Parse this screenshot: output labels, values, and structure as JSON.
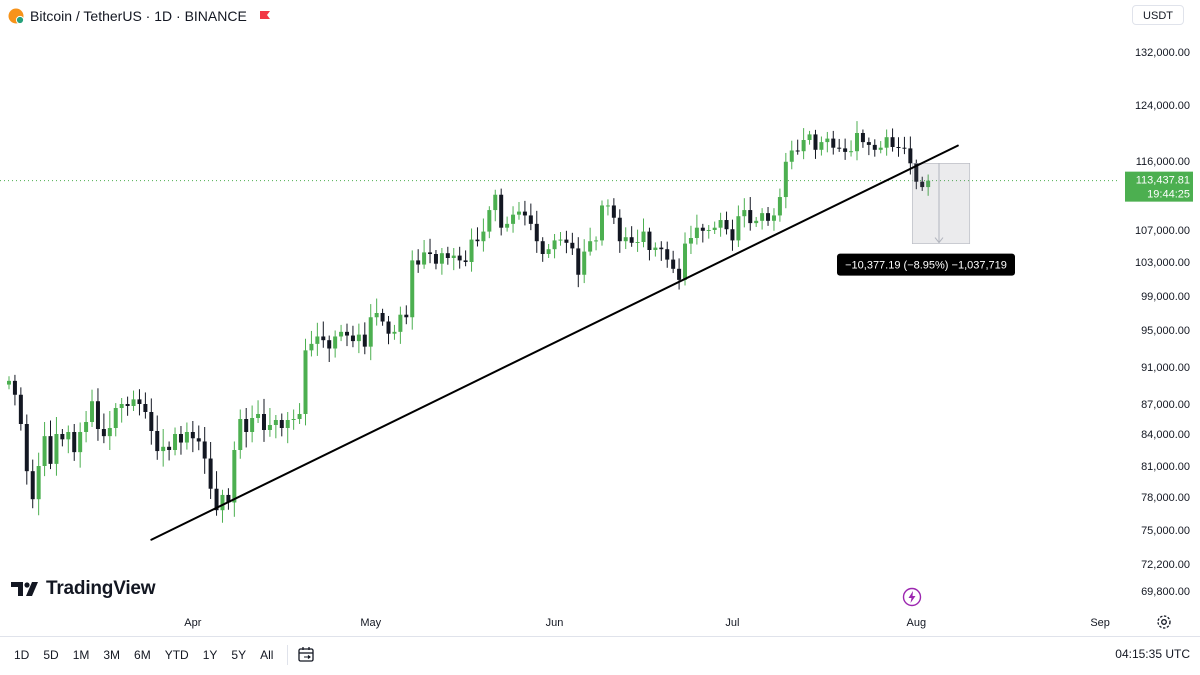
{
  "header": {
    "symbol": "Bitcoin / TetherUS · 1D · BINANCE",
    "currency": "USDT"
  },
  "brand": {
    "logo_text": "TradingView"
  },
  "price_tag": {
    "price": "113,437.81",
    "countdown": "19:44:25"
  },
  "measure_label": "−10,377.19 (−8.95%) −1,037,719",
  "bottom_bar": {
    "ranges": [
      "1D",
      "5D",
      "1M",
      "3M",
      "6M",
      "YTD",
      "1Y",
      "5Y",
      "All"
    ],
    "clock": "04:15:35 UTC"
  },
  "colors": {
    "up": "#4caf50",
    "down": "#131722",
    "price_tag": "#4caf50"
  },
  "chart_data": {
    "type": "candlestick",
    "interval": "1D",
    "y_ticks": [
      132000,
      124000,
      116000,
      107000,
      103000,
      99000,
      95000,
      91000,
      87000,
      84000,
      81000,
      78000,
      75000,
      72200,
      69800
    ],
    "y_tick_labels": [
      "132,000.00",
      "124,000.00",
      "116,000.00",
      "107,000.00",
      "103,000.00",
      "99,000.00",
      "95,000.00",
      "91,000.00",
      "87,000.00",
      "84,000.00",
      "81,000.00",
      "78,000.00",
      "75,000.00",
      "72,200.00",
      "69,800.00"
    ],
    "x_ticks": [
      "2025-04-01",
      "2025-05-01",
      "2025-06-01",
      "2025-07-01",
      "2025-08-01",
      "2025-09-01"
    ],
    "x_tick_labels": [
      "Apr",
      "May",
      "Jun",
      "Jul",
      "Aug",
      "Sep"
    ],
    "grid": false,
    "last_price": 113437.81,
    "closes": [
      [
        "2025-03-01",
        89500
      ],
      [
        "2025-03-02",
        88000
      ],
      [
        "2025-03-03",
        85000
      ],
      [
        "2025-03-04",
        80500
      ],
      [
        "2025-03-05",
        77800
      ],
      [
        "2025-03-06",
        81000
      ],
      [
        "2025-03-07",
        83800
      ],
      [
        "2025-03-08",
        81200
      ],
      [
        "2025-03-09",
        84000
      ],
      [
        "2025-03-10",
        83500
      ],
      [
        "2025-03-11",
        84200
      ],
      [
        "2025-03-12",
        82300
      ],
      [
        "2025-03-13",
        84200
      ],
      [
        "2025-03-14",
        85200
      ],
      [
        "2025-03-15",
        87300
      ],
      [
        "2025-03-16",
        84500
      ],
      [
        "2025-03-17",
        83800
      ],
      [
        "2025-03-18",
        84600
      ],
      [
        "2025-03-19",
        86600
      ],
      [
        "2025-03-20",
        87000
      ],
      [
        "2025-03-21",
        86800
      ],
      [
        "2025-03-22",
        87500
      ],
      [
        "2025-03-23",
        87000
      ],
      [
        "2025-03-24",
        86200
      ],
      [
        "2025-03-25",
        84300
      ],
      [
        "2025-03-26",
        82400
      ],
      [
        "2025-03-27",
        82800
      ],
      [
        "2025-03-28",
        82500
      ],
      [
        "2025-03-29",
        84000
      ],
      [
        "2025-03-30",
        83200
      ],
      [
        "2025-03-31",
        84200
      ],
      [
        "2025-04-01",
        83600
      ],
      [
        "2025-04-02",
        83300
      ],
      [
        "2025-04-03",
        81700
      ],
      [
        "2025-04-04",
        78800
      ],
      [
        "2025-04-05",
        76800
      ],
      [
        "2025-04-06",
        78200
      ],
      [
        "2025-04-07",
        77500
      ],
      [
        "2025-04-08",
        82500
      ],
      [
        "2025-04-09",
        85500
      ],
      [
        "2025-04-10",
        84200
      ],
      [
        "2025-04-11",
        85600
      ],
      [
        "2025-04-12",
        86000
      ],
      [
        "2025-04-13",
        84400
      ],
      [
        "2025-04-14",
        84900
      ],
      [
        "2025-04-15",
        85400
      ],
      [
        "2025-04-16",
        84600
      ],
      [
        "2025-04-17",
        85400
      ],
      [
        "2025-04-18",
        85500
      ],
      [
        "2025-04-19",
        86000
      ],
      [
        "2025-04-20",
        92800
      ],
      [
        "2025-04-21",
        93500
      ],
      [
        "2025-04-22",
        94300
      ],
      [
        "2025-04-23",
        93900
      ],
      [
        "2025-04-24",
        93000
      ],
      [
        "2025-04-25",
        94300
      ],
      [
        "2025-04-26",
        94800
      ],
      [
        "2025-04-27",
        94400
      ],
      [
        "2025-04-28",
        93800
      ],
      [
        "2025-04-29",
        94500
      ],
      [
        "2025-04-30",
        93200
      ],
      [
        "2025-05-01",
        96500
      ],
      [
        "2025-05-02",
        97000
      ],
      [
        "2025-05-03",
        96000
      ],
      [
        "2025-05-04",
        94600
      ],
      [
        "2025-05-05",
        94800
      ],
      [
        "2025-05-06",
        96800
      ],
      [
        "2025-05-07",
        96500
      ],
      [
        "2025-05-08",
        103200
      ],
      [
        "2025-05-09",
        102700
      ],
      [
        "2025-05-10",
        104200
      ],
      [
        "2025-05-11",
        104000
      ],
      [
        "2025-05-12",
        102800
      ],
      [
        "2025-05-13",
        104100
      ],
      [
        "2025-05-14",
        103500
      ],
      [
        "2025-05-15",
        103800
      ],
      [
        "2025-05-16",
        103200
      ],
      [
        "2025-05-17",
        103000
      ],
      [
        "2025-05-18",
        105800
      ],
      [
        "2025-05-19",
        105600
      ],
      [
        "2025-05-20",
        106800
      ],
      [
        "2025-05-21",
        109600
      ],
      [
        "2025-05-22",
        111600
      ],
      [
        "2025-05-23",
        107300
      ],
      [
        "2025-05-24",
        107800
      ],
      [
        "2025-05-25",
        109000
      ],
      [
        "2025-05-26",
        109400
      ],
      [
        "2025-05-27",
        108900
      ],
      [
        "2025-05-28",
        107800
      ],
      [
        "2025-05-29",
        105600
      ],
      [
        "2025-05-30",
        104000
      ],
      [
        "2025-05-31",
        104600
      ],
      [
        "2025-06-01",
        105700
      ],
      [
        "2025-06-02",
        105800
      ],
      [
        "2025-06-03",
        105400
      ],
      [
        "2025-06-04",
        104700
      ],
      [
        "2025-06-05",
        101500
      ],
      [
        "2025-06-06",
        104300
      ],
      [
        "2025-06-07",
        105600
      ],
      [
        "2025-06-08",
        105700
      ],
      [
        "2025-06-09",
        110200
      ],
      [
        "2025-06-10",
        110200
      ],
      [
        "2025-06-11",
        108600
      ],
      [
        "2025-06-12",
        105600
      ],
      [
        "2025-06-13",
        106100
      ],
      [
        "2025-06-14",
        105400
      ],
      [
        "2025-06-15",
        105500
      ],
      [
        "2025-06-16",
        106800
      ],
      [
        "2025-06-17",
        104500
      ],
      [
        "2025-06-18",
        104800
      ],
      [
        "2025-06-19",
        104600
      ],
      [
        "2025-06-20",
        103300
      ],
      [
        "2025-06-21",
        102200
      ],
      [
        "2025-06-22",
        100900
      ],
      [
        "2025-06-23",
        105300
      ],
      [
        "2025-06-24",
        106000
      ],
      [
        "2025-06-25",
        107300
      ],
      [
        "2025-06-26",
        106900
      ],
      [
        "2025-06-27",
        107000
      ],
      [
        "2025-06-28",
        107300
      ],
      [
        "2025-06-29",
        108300
      ],
      [
        "2025-06-30",
        107100
      ],
      [
        "2025-07-01",
        105700
      ],
      [
        "2025-07-02",
        108800
      ],
      [
        "2025-07-03",
        109600
      ],
      [
        "2025-07-04",
        107900
      ],
      [
        "2025-07-05",
        108200
      ],
      [
        "2025-07-06",
        109200
      ],
      [
        "2025-07-07",
        108200
      ],
      [
        "2025-07-08",
        108900
      ],
      [
        "2025-07-09",
        111300
      ],
      [
        "2025-07-10",
        115900
      ],
      [
        "2025-07-11",
        117500
      ],
      [
        "2025-07-12",
        117400
      ],
      [
        "2025-07-13",
        119000
      ],
      [
        "2025-07-14",
        119800
      ],
      [
        "2025-07-15",
        117600
      ],
      [
        "2025-07-16",
        118700
      ],
      [
        "2025-07-17",
        119200
      ],
      [
        "2025-07-18",
        117900
      ],
      [
        "2025-07-19",
        117800
      ],
      [
        "2025-07-20",
        117300
      ],
      [
        "2025-07-21",
        117400
      ],
      [
        "2025-07-22",
        120000
      ],
      [
        "2025-07-23",
        118700
      ],
      [
        "2025-07-24",
        118300
      ],
      [
        "2025-07-25",
        117600
      ],
      [
        "2025-07-26",
        117900
      ],
      [
        "2025-07-27",
        119400
      ],
      [
        "2025-07-28",
        118000
      ],
      [
        "2025-07-29",
        117900
      ],
      [
        "2025-07-30",
        117800
      ],
      [
        "2025-07-31",
        115700
      ],
      [
        "2025-08-01",
        113300
      ],
      [
        "2025-08-02",
        112600
      ],
      [
        "2025-08-03",
        113437.81
      ]
    ],
    "trendline": {
      "start": [
        "2025-03-25",
        74200
      ],
      "end": [
        "2025-08-08",
        118200
      ]
    },
    "price_range": {
      "from_price": 115700,
      "to_price": 105300,
      "start": "2025-08-01",
      "end": "2025-08-09"
    }
  }
}
